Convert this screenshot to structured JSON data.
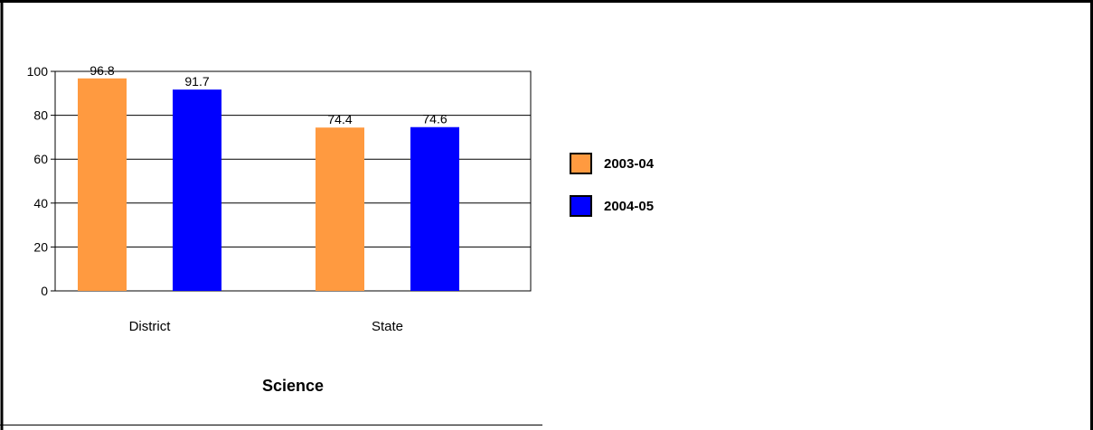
{
  "chart_data": {
    "type": "bar",
    "title": "Science",
    "categories": [
      "District",
      "State"
    ],
    "series": [
      {
        "name": "2003-04",
        "color": "#ff9a40",
        "values": [
          96.8,
          74.4
        ]
      },
      {
        "name": "2004-05",
        "color": "#0000ff",
        "values": [
          91.7,
          74.6
        ]
      }
    ],
    "ylim": [
      0,
      100
    ],
    "yticks": [
      0,
      20,
      40,
      60,
      80,
      100
    ],
    "grid": true,
    "legend_position": "right"
  }
}
